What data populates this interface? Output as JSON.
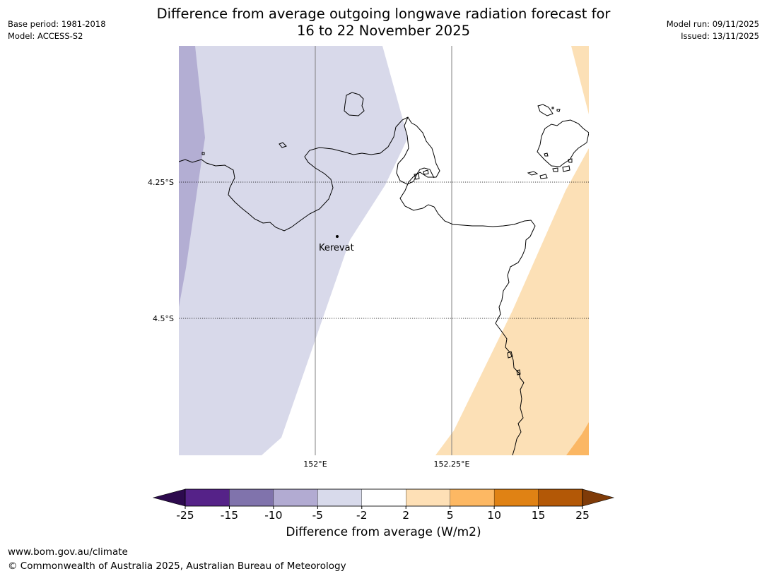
{
  "header": {
    "title_line1": "Difference from average outgoing longwave radiation forecast for",
    "title_line2": "16 to 22 November 2025",
    "base_period": "Base period: 1981-2018",
    "model": "Model: ACCESS-S2",
    "model_run": "Model run: 09/11/2025",
    "issued": "Issued: 13/11/2025"
  },
  "map": {
    "lat_labels": [
      "4.25°S",
      "4.5°S"
    ],
    "lon_labels": [
      "152°E",
      "152.25°E"
    ],
    "place": {
      "name": "Kerevat"
    },
    "colors": {
      "lavender_light": "#d8d9ea",
      "lavender_mid": "#b3aed3",
      "peach_light": "#fce0b6",
      "orange_mid": "#fbb764",
      "coast": "#000000",
      "grid": "#808080"
    }
  },
  "colorbar": {
    "title": "Difference from average (W/m2)",
    "tick_labels": [
      "-25",
      "-15",
      "-10",
      "-5",
      "-2",
      "2",
      "5",
      "10",
      "15",
      "25"
    ],
    "colors": [
      "#2d0a4e",
      "#552288",
      "#8073ac",
      "#b2abd2",
      "#d8daeb",
      "#ffffff",
      "#fee0b6",
      "#fdb863",
      "#e08214",
      "#b35806",
      "#7f3b08"
    ]
  },
  "footer": {
    "url": "www.bom.gov.au/climate",
    "copyright": "© Commonwealth of Australia 2025, Australian Bureau of Meteorology"
  }
}
